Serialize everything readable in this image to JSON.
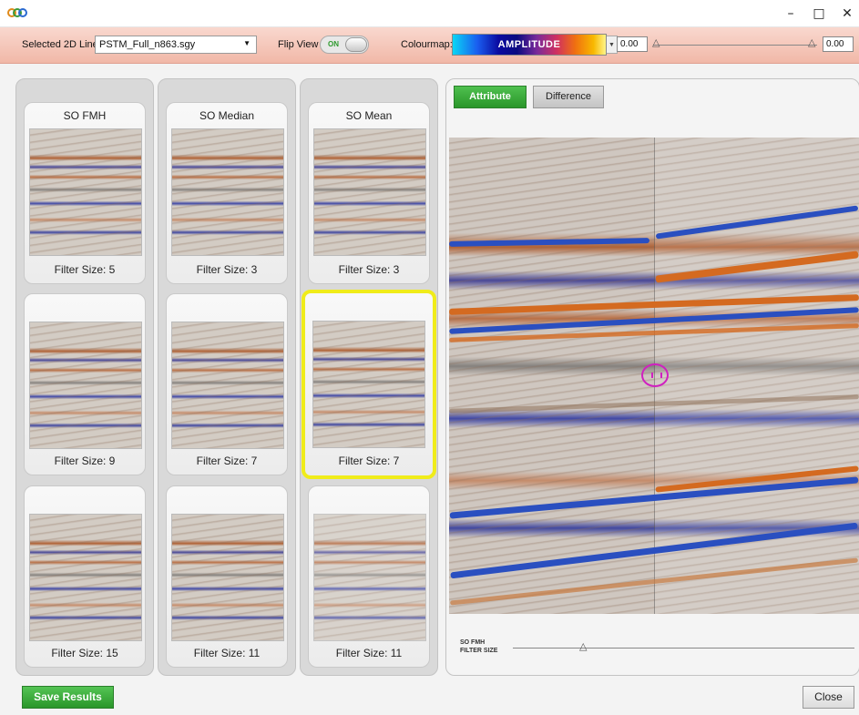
{
  "titlebar": {
    "logo_text": "GEO",
    "minimize": "–",
    "maximize": "□",
    "close": "✕"
  },
  "toolbar": {
    "line_label": "Selected 2D Line:",
    "line_value": "PSTM_Full_n863.sgy",
    "flip_label": "Flip View",
    "flip_state": "ON",
    "colourmap_label": "Colourmap:",
    "colourmap_name": "AMPLITUDE",
    "min_value": "0.00",
    "max_value": "0.00"
  },
  "columns": [
    {
      "title": "SO FMH",
      "cards": [
        {
          "label": "Filter Size: 5"
        },
        {
          "label": "Filter Size: 9"
        },
        {
          "label": "Filter Size: 15"
        }
      ]
    },
    {
      "title": "SO Median",
      "cards": [
        {
          "label": "Filter Size: 3"
        },
        {
          "label": "Filter Size: 7"
        },
        {
          "label": "Filter Size: 11"
        }
      ]
    },
    {
      "title": "SO Mean",
      "cards": [
        {
          "label": "Filter Size: 3"
        },
        {
          "label": "Filter Size: 7",
          "selected": true
        },
        {
          "label": "Filter Size: 11"
        }
      ]
    }
  ],
  "viewer": {
    "tab_attribute": "Attribute",
    "tab_difference": "Difference",
    "filter_label_line1": "SO FMH",
    "filter_label_line2": "FILTER SIZE"
  },
  "footer": {
    "save_label": "Save Results",
    "close_label": "Close"
  },
  "colors": {
    "accent_green": "#2a962a",
    "selected_border": "#f0ec1a",
    "toolbar_bg": "#f1b8a8"
  }
}
